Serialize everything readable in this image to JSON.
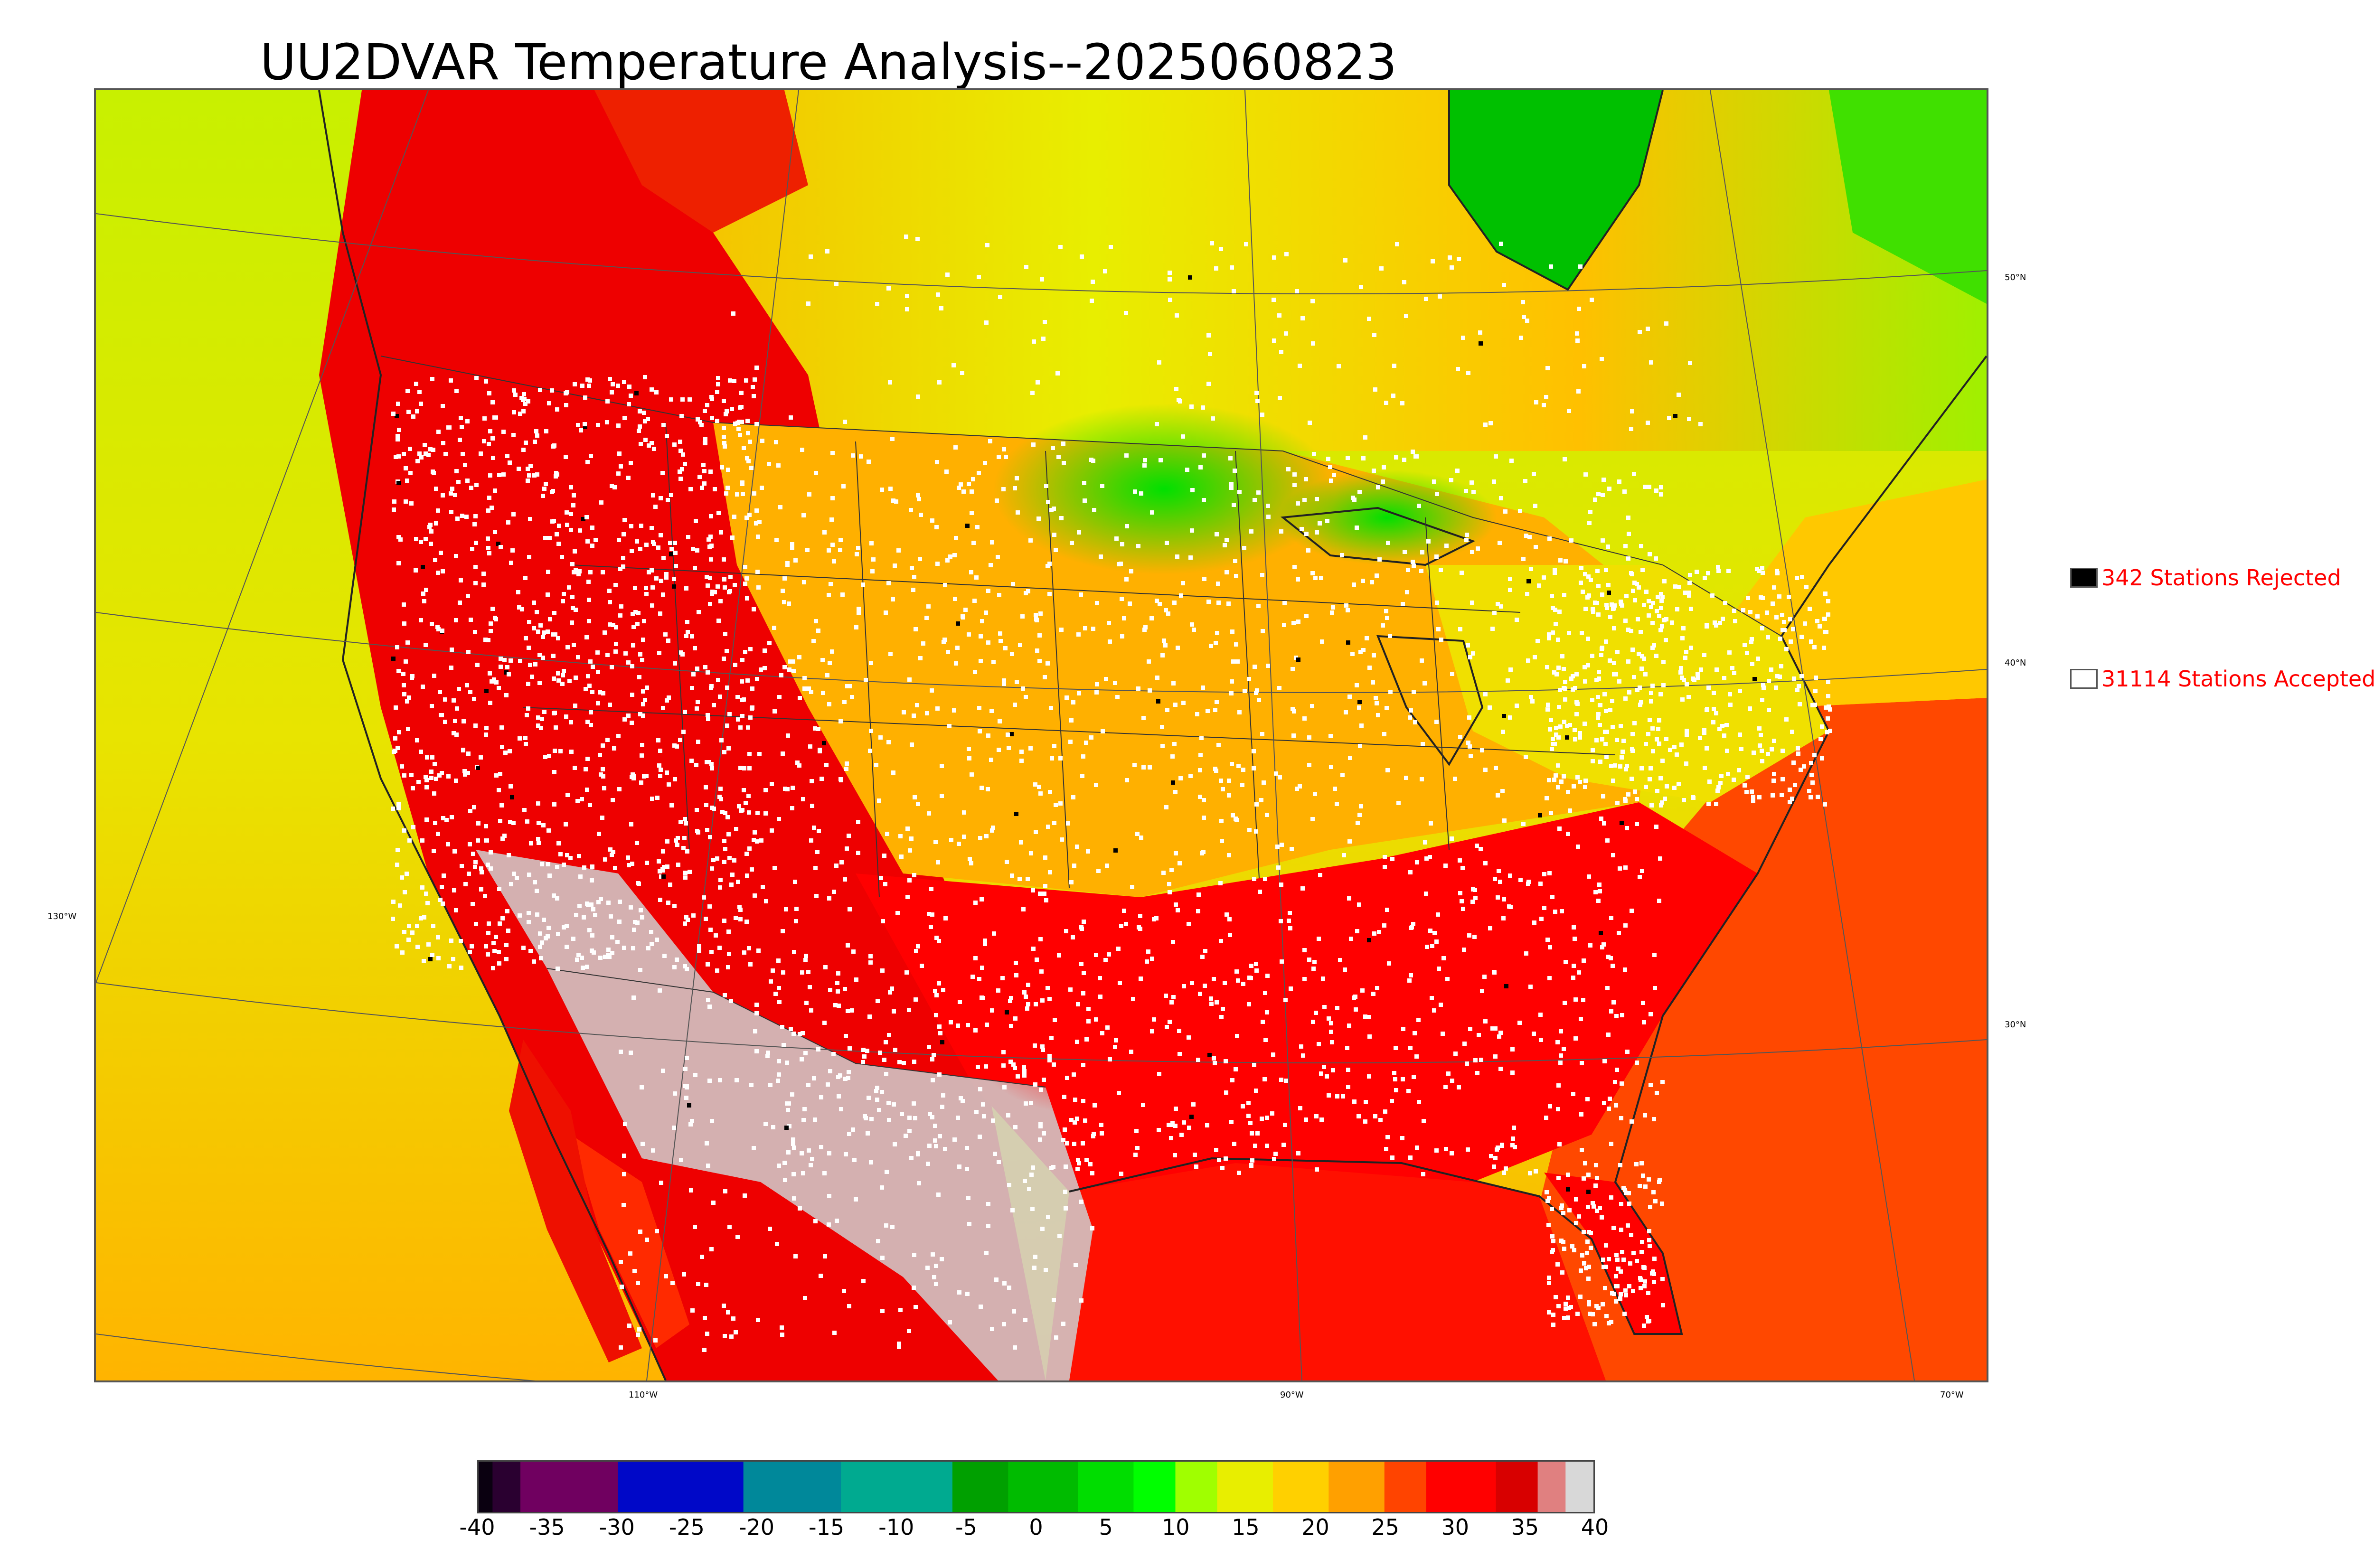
{
  "title": "UU2DVAR Temperature Analysis--2025060823",
  "legend": {
    "rejected_label": "342 Stations Rejected",
    "rejected_color": "#000000",
    "accepted_label": "31114 Stations Accepted",
    "accepted_color": "#ffffff"
  },
  "latitude_labels": [
    "50°N",
    "40°N",
    "30°N"
  ],
  "longitude_labels": [
    "130°W",
    "110°W",
    "90°W",
    "70°W"
  ],
  "colorbar": {
    "ticks": [
      "-40",
      "-35",
      "-30",
      "-25",
      "-20",
      "-15",
      "-10",
      "-5",
      "0",
      "5",
      "10",
      "15",
      "20",
      "25",
      "30",
      "35",
      "40"
    ],
    "range": [
      -40,
      40
    ],
    "bands": [
      {
        "from": -40,
        "to": -39,
        "color": "#0a0010"
      },
      {
        "from": -39,
        "to": -37,
        "color": "#2a0030"
      },
      {
        "from": -37,
        "to": -30,
        "color": "#700060"
      },
      {
        "from": -30,
        "to": -21,
        "color": "#0008c8"
      },
      {
        "from": -21,
        "to": -14,
        "color": "#00889a"
      },
      {
        "from": -14,
        "to": -6,
        "color": "#00aa90"
      },
      {
        "from": -6,
        "to": -2,
        "color": "#00a000"
      },
      {
        "from": -2,
        "to": 3,
        "color": "#00bb00"
      },
      {
        "from": 3,
        "to": 7,
        "color": "#00dd00"
      },
      {
        "from": 7,
        "to": 10,
        "color": "#00ff00"
      },
      {
        "from": 10,
        "to": 13,
        "color": "#a0ff00"
      },
      {
        "from": 13,
        "to": 17,
        "color": "#e8ee00"
      },
      {
        "from": 17,
        "to": 21,
        "color": "#ffd000"
      },
      {
        "from": 21,
        "to": 25,
        "color": "#ffa000"
      },
      {
        "from": 25,
        "to": 28,
        "color": "#ff4400"
      },
      {
        "from": 28,
        "to": 33,
        "color": "#ff0000"
      },
      {
        "from": 33,
        "to": 36,
        "color": "#d80000"
      },
      {
        "from": 36,
        "to": 38,
        "color": "#e08080"
      },
      {
        "from": 38,
        "to": 40,
        "color": "#d8d8d8"
      }
    ]
  },
  "map_colors": {
    "ocean_west": "#f0d400",
    "ocean_southwest": "#ffb000",
    "gulf": "#ff1800",
    "atlantic": "#ff5000",
    "canada_north": "#8fe000",
    "hudson": "#00c800",
    "west_hot": "#ee0000",
    "desert": "#cccccc",
    "plains": "#ffb400",
    "south": "#ff0000",
    "northeast": "#f0e000",
    "coast": "#222222",
    "grid": "#555555",
    "stations_accepted": "#ffffff",
    "stations_rejected": "#000000"
  }
}
